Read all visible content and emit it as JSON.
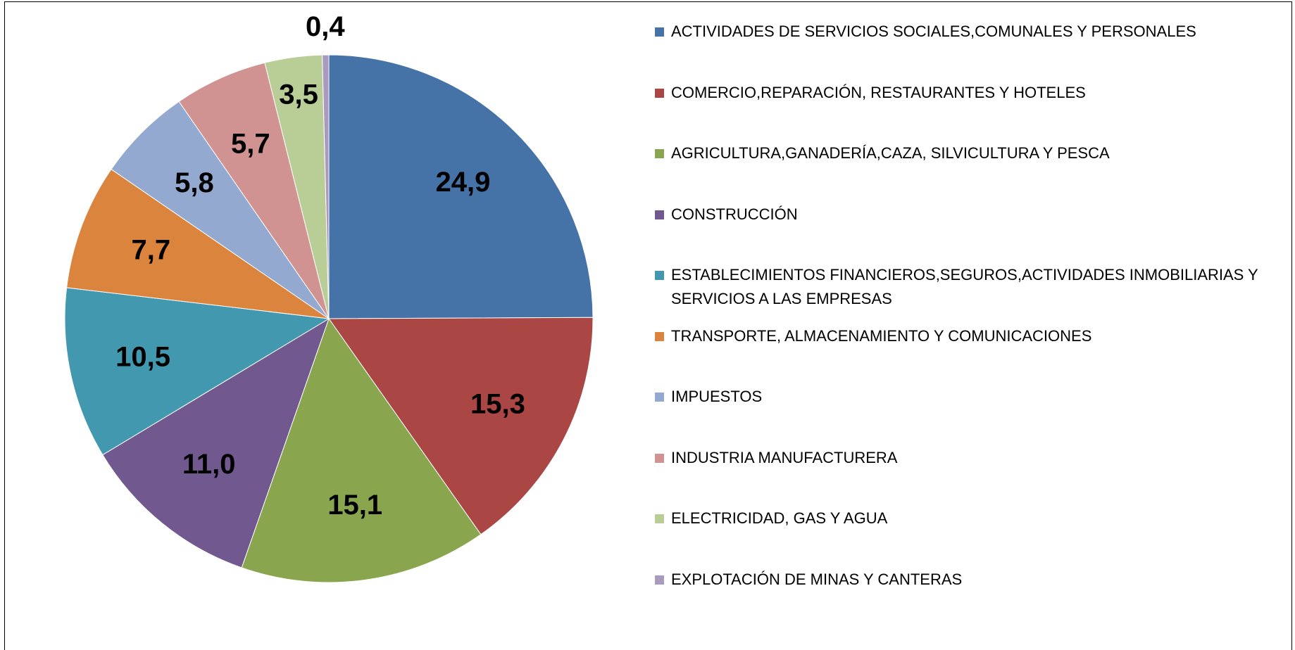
{
  "chart_data": {
    "type": "pie",
    "categories": [
      "ACTIVIDADES DE SERVICIOS SOCIALES,COMUNALES Y PERSONALES",
      "COMERCIO,REPARACIÓN, RESTAURANTES Y HOTELES",
      "AGRICULTURA,GANADERÍA,CAZA, SILVICULTURA Y PESCA",
      "CONSTRUCCIÓN",
      "ESTABLECIMIENTOS FINANCIEROS,SEGUROS,ACTIVIDADES INMOBILIARIAS Y SERVICIOS A LAS EMPRESAS",
      "TRANSPORTE, ALMACENAMIENTO Y COMUNICACIONES",
      "IMPUESTOS",
      "INDUSTRIA MANUFACTURERA",
      "ELECTRICIDAD, GAS Y AGUA",
      "EXPLOTACIÓN DE MINAS Y CANTERAS"
    ],
    "values": [
      24.9,
      15.3,
      15.1,
      11.0,
      10.5,
      7.7,
      5.8,
      5.7,
      3.5,
      0.4
    ],
    "value_labels": [
      "24,9",
      "15,3",
      "15,1",
      "11,0",
      "10,5",
      "7,7",
      "5,8",
      "5,7",
      "3,5",
      "0,4"
    ],
    "colors": [
      "#4572a7",
      "#aa4643",
      "#89a54e",
      "#71588f",
      "#4198af",
      "#db843d",
      "#93a9cf",
      "#d19392",
      "#b9cd96",
      "#a99bbd"
    ],
    "legend": "right"
  }
}
